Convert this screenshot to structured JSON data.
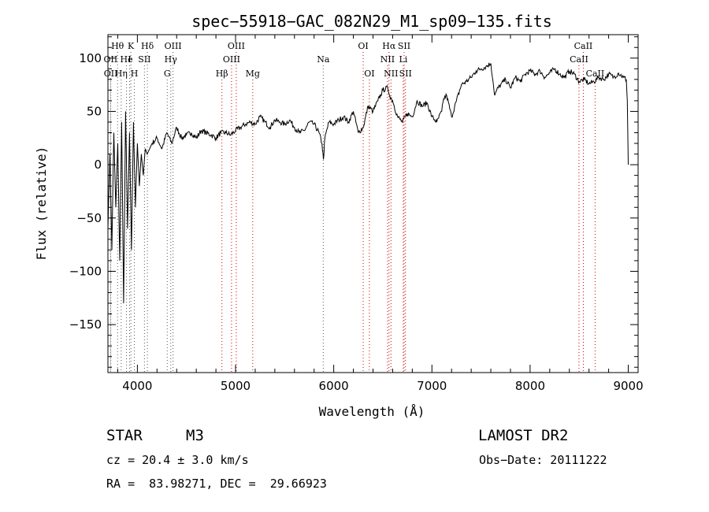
{
  "chart_data": {
    "type": "line",
    "title": "spec−55918−GAC_082N29_M1_sp09−135.fits",
    "xlabel": "Wavelength (Å)",
    "ylabel": "Flux (relative)",
    "xlim": [
      3700,
      9100
    ],
    "ylim": [
      -195,
      122
    ],
    "x_ticks": [
      4000,
      5000,
      6000,
      7000,
      8000,
      9000
    ],
    "x_tick_labels": [
      "4000",
      "5000",
      "6000",
      "7000",
      "8000",
      "9000"
    ],
    "y_ticks": [
      100,
      50,
      0,
      -50,
      -100,
      -150
    ],
    "y_tick_labels": [
      "100",
      "50",
      "0",
      "−50",
      "−100",
      "−150"
    ],
    "grid": false,
    "series": [
      {
        "color": "#000000",
        "x": [
          3700,
          3720,
          3740,
          3760,
          3780,
          3800,
          3820,
          3840,
          3860,
          3880,
          3900,
          3920,
          3940,
          3960,
          3980,
          4000,
          4020,
          4040,
          4060,
          4080,
          4100,
          4150,
          4200,
          4250,
          4300,
          4350,
          4400,
          4450,
          4500,
          4550,
          4600,
          4650,
          4700,
          4750,
          4800,
          4850,
          4900,
          4950,
          5000,
          5050,
          5100,
          5150,
          5200,
          5250,
          5300,
          5350,
          5400,
          5450,
          5500,
          5550,
          5600,
          5650,
          5700,
          5750,
          5800,
          5850,
          5880,
          5895,
          5910,
          5950,
          6000,
          6050,
          6100,
          6150,
          6200,
          6250,
          6300,
          6350,
          6400,
          6450,
          6500,
          6550,
          6570,
          6600,
          6650,
          6700,
          6750,
          6800,
          6850,
          6900,
          6950,
          7000,
          7050,
          7100,
          7120,
          7150,
          7200,
          7250,
          7300,
          7350,
          7400,
          7450,
          7500,
          7550,
          7600,
          7620,
          7640,
          7660,
          7700,
          7750,
          7800,
          7850,
          7900,
          7950,
          8000,
          8050,
          8100,
          8150,
          8200,
          8250,
          8300,
          8350,
          8400,
          8450,
          8500,
          8550,
          8600,
          8650,
          8700,
          8750,
          8800,
          8850,
          8900,
          8950,
          8980,
          8990,
          9000
        ],
        "y": [
          -60,
          10,
          -80,
          30,
          -40,
          20,
          -90,
          40,
          -130,
          50,
          -60,
          30,
          -80,
          40,
          -40,
          20,
          -20,
          10,
          -10,
          15,
          10,
          20,
          25,
          15,
          30,
          20,
          35,
          25,
          28,
          30,
          25,
          32,
          30,
          28,
          25,
          30,
          30,
          28,
          32,
          35,
          38,
          40,
          38,
          45,
          40,
          35,
          42,
          40,
          38,
          42,
          35,
          30,
          32,
          40,
          38,
          30,
          20,
          5,
          25,
          40,
          38,
          42,
          45,
          40,
          50,
          30,
          35,
          55,
          50,
          60,
          70,
          72,
          65,
          60,
          45,
          40,
          48,
          45,
          60,
          55,
          58,
          45,
          40,
          50,
          62,
          65,
          45,
          60,
          75,
          78,
          82,
          88,
          90,
          92,
          95,
          80,
          65,
          70,
          75,
          80,
          72,
          82,
          78,
          85,
          88,
          85,
          88,
          82,
          86,
          90,
          85,
          82,
          88,
          85,
          78,
          80,
          76,
          78,
          82,
          80,
          85,
          82,
          86,
          82,
          80,
          60,
          0
        ]
      }
    ],
    "line_marker_color": "#cc0000",
    "line_marker_gray": "#555555",
    "spectral_lines": [
      {
        "label": "Hθ",
        "wave": 3798,
        "row": 0,
        "color": "gray"
      },
      {
        "label": "K",
        "wave": 3934,
        "row": 0,
        "color": "gray"
      },
      {
        "label": "Hδ",
        "wave": 4102,
        "row": 0,
        "color": "gray"
      },
      {
        "label": "OIII",
        "wave": 4363,
        "row": 0,
        "color": "gray"
      },
      {
        "label": "OIII",
        "wave": 5007,
        "row": 0,
        "color": "red"
      },
      {
        "label": "OI",
        "wave": 6300,
        "row": 0,
        "color": "red"
      },
      {
        "label": "Hα",
        "wave": 6563,
        "row": 0,
        "color": "red"
      },
      {
        "label": "SII",
        "wave": 6717,
        "row": 0,
        "color": "red"
      },
      {
        "label": "CaII",
        "wave": 8542,
        "row": 0,
        "color": "red"
      },
      {
        "label": "OII",
        "wave": 3727,
        "row": 1,
        "color": "gray"
      },
      {
        "label": "He",
        "wave": 3889,
        "row": 1,
        "color": "gray"
      },
      {
        "label": "I",
        "wave": 3921,
        "row": 1,
        "color": "gray"
      },
      {
        "label": "SII",
        "wave": 4072,
        "row": 1,
        "color": "gray"
      },
      {
        "label": "Hγ",
        "wave": 4340,
        "row": 1,
        "color": "gray"
      },
      {
        "label": "OIII",
        "wave": 4959,
        "row": 1,
        "color": "red"
      },
      {
        "label": "Na",
        "wave": 5893,
        "row": 1,
        "color": "gray"
      },
      {
        "label": "NII",
        "wave": 6548,
        "row": 1,
        "color": "red"
      },
      {
        "label": "Li",
        "wave": 6708,
        "row": 1,
        "color": "red"
      },
      {
        "label": "CaII",
        "wave": 8498,
        "row": 1,
        "color": "red"
      },
      {
        "label": "OII",
        "wave": 3729,
        "row": 2,
        "color": "gray"
      },
      {
        "label": "Hη",
        "wave": 3835,
        "row": 2,
        "color": "gray"
      },
      {
        "label": "H",
        "wave": 3969,
        "row": 2,
        "color": "gray"
      },
      {
        "label": "G",
        "wave": 4304,
        "row": 2,
        "color": "gray"
      },
      {
        "label": "Hβ",
        "wave": 4861,
        "row": 2,
        "color": "red"
      },
      {
        "label": "Mg",
        "wave": 5175,
        "row": 2,
        "color": "red"
      },
      {
        "label": "OI",
        "wave": 6363,
        "row": 2,
        "color": "red"
      },
      {
        "label": "NII",
        "wave": 6583,
        "row": 2,
        "color": "red"
      },
      {
        "label": "SII",
        "wave": 6731,
        "row": 2,
        "color": "red"
      },
      {
        "label": "CaII",
        "wave": 8662,
        "row": 2,
        "color": "red"
      }
    ]
  },
  "info": {
    "object_class": "STAR",
    "subclass": "M3",
    "survey": "LAMOST DR2",
    "cz": "cz = 20.4 ± 3.0 km/s",
    "obs_date": "Obs−Date: 20111222",
    "coords": "RA =  83.98271, DEC =  29.66923"
  }
}
